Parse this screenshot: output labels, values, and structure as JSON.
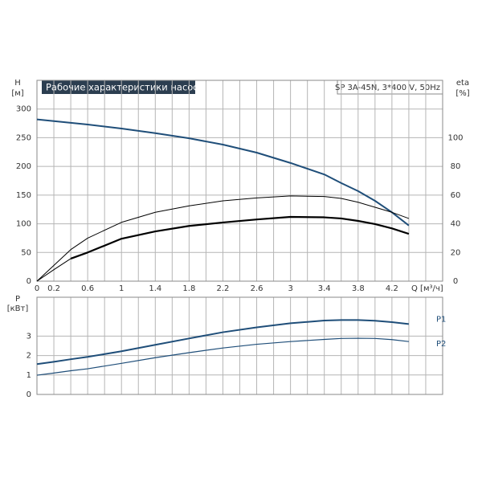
{
  "chart_data": [
    {
      "type": "line",
      "title": "Рабочие характеристики насоса",
      "subtitle": "SP 3A-45N, 3*400 V, 50Hz",
      "ylabel": "H",
      "yunit": "[м]",
      "y2label": "eta",
      "y2unit": "[%]",
      "xlabel": "Q [м³/ч]",
      "x": [
        0,
        0.2,
        0.4,
        0.6,
        1.0,
        1.4,
        1.8,
        2.2,
        2.6,
        3.0,
        3.4,
        3.6,
        3.8,
        4.0,
        4.2,
        4.4
      ],
      "xlim": [
        0,
        4.8
      ],
      "xticks": [
        0,
        0.2,
        0.6,
        1.0,
        1.4,
        1.8,
        2.2,
        2.6,
        3.0,
        3.4,
        3.8,
        4.2
      ],
      "xminor": [
        0.4,
        0.8,
        1.2,
        1.6,
        2.0,
        2.4,
        2.8,
        3.2,
        3.6,
        4.0,
        4.4,
        4.6
      ],
      "ylim": [
        0,
        350
      ],
      "yticks": [
        0,
        50,
        100,
        150,
        200,
        250,
        300
      ],
      "y2lim": [
        0,
        140
      ],
      "y2ticks": [
        0,
        20,
        40,
        60,
        80,
        100
      ],
      "grid": true,
      "series": [
        {
          "color": "#1f4e79",
          "width": 2,
          "values": [
            282,
            279,
            276,
            273,
            266,
            258,
            249,
            238,
            224,
            206,
            186,
            171,
            157,
            140,
            120,
            97
          ]
        },
        {
          "color": "#000000",
          "width": 1,
          "axis": "y2",
          "values": [
            0,
            11,
            22,
            30,
            41,
            48,
            52.5,
            56,
            58,
            59.4,
            59,
            57.7,
            55,
            51.5,
            48,
            43.7
          ]
        },
        {
          "color": "#000000",
          "width": 1,
          "axis": "y2",
          "values": [
            0,
            8,
            15.7,
            null,
            null,
            null,
            null,
            null,
            null,
            null,
            null,
            null,
            null,
            null,
            null,
            null
          ]
        },
        {
          "color": "#000000",
          "width": 2.2,
          "axis": "y2",
          "values": [
            null,
            null,
            15.7,
            20,
            29.6,
            34.7,
            38.5,
            40.9,
            43,
            44.8,
            44.5,
            43.7,
            42,
            39.8,
            36.8,
            33
          ]
        }
      ]
    },
    {
      "type": "line",
      "ylabel": "P",
      "yunit": "[кВт]",
      "x": [
        0,
        0.2,
        0.4,
        0.6,
        1.0,
        1.4,
        1.8,
        2.2,
        2.6,
        3.0,
        3.4,
        3.6,
        3.8,
        4.0,
        4.2,
        4.4
      ],
      "xlim": [
        0,
        4.8
      ],
      "xticks": [
        0,
        0.2,
        0.6,
        1.0,
        1.4,
        1.8,
        2.2,
        2.6,
        3.0,
        3.4,
        3.8,
        4.2
      ],
      "xminor": [
        0.4,
        0.8,
        1.2,
        1.6,
        2.0,
        2.4,
        2.8,
        3.2,
        3.6,
        4.0,
        4.4,
        4.6
      ],
      "ylim": [
        0,
        5
      ],
      "yticks": [
        0,
        1,
        2,
        3
      ],
      "grid": true,
      "series": [
        {
          "name": "P1",
          "color": "#1f4e79",
          "width": 2,
          "values": [
            1.56,
            1.68,
            1.81,
            1.93,
            2.22,
            2.55,
            2.88,
            3.2,
            3.45,
            3.66,
            3.8,
            3.83,
            3.83,
            3.79,
            3.72,
            3.62
          ]
        },
        {
          "name": "P2",
          "color": "#1f4e79",
          "width": 1.2,
          "values": [
            0.99,
            1.1,
            1.22,
            1.32,
            1.6,
            1.89,
            2.15,
            2.39,
            2.58,
            2.72,
            2.83,
            2.88,
            2.89,
            2.88,
            2.82,
            2.72
          ]
        }
      ]
    }
  ]
}
